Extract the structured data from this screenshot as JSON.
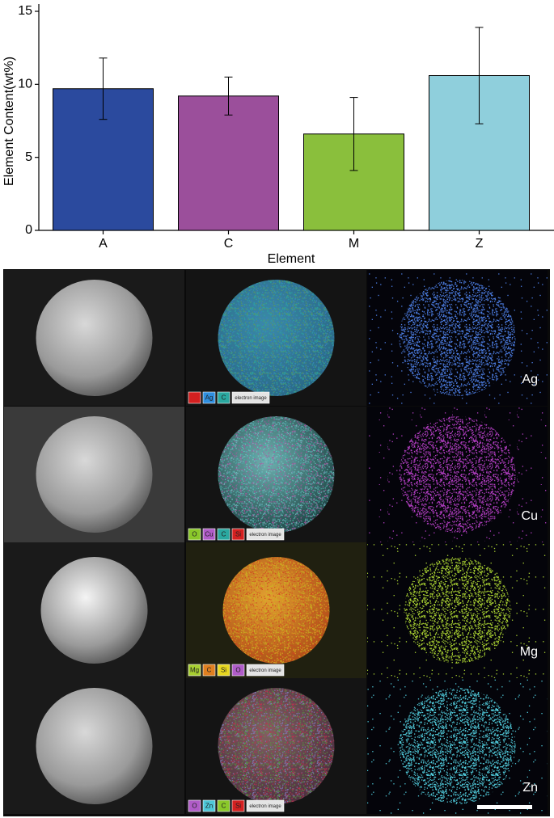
{
  "chart_data": {
    "type": "bar",
    "ylabel": "Element Content(wt%)",
    "xlabel": "Element",
    "categories": [
      "A",
      "C",
      "M",
      "Z"
    ],
    "values": [
      9.7,
      9.2,
      6.6,
      10.6
    ],
    "errors": [
      2.1,
      1.3,
      2.5,
      3.3
    ],
    "colors": [
      "#2b4a9e",
      "#9b4f9b",
      "#8abf3c",
      "#8fcfdc"
    ],
    "ylim": [
      0,
      15
    ],
    "yticks": [
      0,
      5,
      10,
      15
    ]
  },
  "image_panels": [
    {
      "element": "Ag",
      "legend": [
        {
          "label": null,
          "color": "#d42020"
        },
        {
          "label": "Ag",
          "color": "#2f8fe0"
        },
        {
          "label": "C",
          "color": "#2aa8a0"
        },
        {
          "label": "electron image",
          "color": "#e4e4e4"
        }
      ]
    },
    {
      "element": "Cu",
      "legend": [
        {
          "label": "O",
          "color": "#8ac82a"
        },
        {
          "label": "Cu",
          "color": "#b05cc8"
        },
        {
          "label": "C",
          "color": "#2aa8a0"
        },
        {
          "label": "Si",
          "color": "#d42020"
        },
        {
          "label": "electron image",
          "color": "#e4e4e4"
        }
      ]
    },
    {
      "element": "Mg",
      "legend": [
        {
          "label": "Mg",
          "color": "#a8d030"
        },
        {
          "label": "C",
          "color": "#e08020"
        },
        {
          "label": "Si",
          "color": "#e8d820"
        },
        {
          "label": "O",
          "color": "#b05cc8"
        },
        {
          "label": "electron image",
          "color": "#e4e4e4"
        }
      ]
    },
    {
      "element": "Zn",
      "legend": [
        {
          "label": "O",
          "color": "#b05cc8"
        },
        {
          "label": "Zn",
          "color": "#4ec8d8"
        },
        {
          "label": "C",
          "color": "#8ac82a"
        },
        {
          "label": "Si",
          "color": "#d42020"
        },
        {
          "label": "electron image",
          "color": "#e4e4e4"
        }
      ]
    }
  ]
}
